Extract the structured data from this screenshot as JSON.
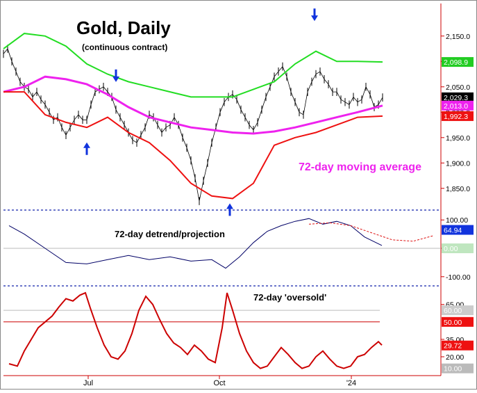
{
  "chart_data": [
    {
      "type": "line",
      "title": "Gold, Daily",
      "subtitle": "(continuous contract)",
      "annotation": "72-day moving average",
      "ylim": [
        1810,
        2210
      ],
      "yticks": [
        2150,
        2100,
        2050,
        2000,
        1950,
        1900,
        1850
      ],
      "ytick_labels": [
        "2,150.0",
        "2,100.0",
        "2,050.0",
        "2,000.0",
        "1,950.0",
        "1,900.0",
        "1,850.0"
      ],
      "price_labels": [
        {
          "value": 2098.9,
          "text": "2,098.9",
          "color": "#22cc22"
        },
        {
          "value": 2029.3,
          "text": "2,029.3",
          "color": "#000000"
        },
        {
          "value": 2013.0,
          "text": "2,013.0",
          "color": "#ee22ee"
        },
        {
          "value": 1992.3,
          "text": "1,992.3",
          "color": "#ee1111"
        }
      ],
      "series": [
        {
          "name": "Price",
          "color": "#000000",
          "x": [
            0,
            6,
            12,
            18,
            24,
            30,
            36,
            42,
            48,
            54,
            60,
            66,
            72,
            78,
            84,
            90,
            96,
            102,
            108,
            114,
            120,
            126,
            132,
            138,
            144,
            150,
            156,
            162,
            168,
            174,
            180,
            186,
            192,
            198,
            204,
            210,
            216,
            222,
            228,
            234,
            240,
            246,
            252,
            258,
            264,
            270,
            276,
            282,
            288,
            294,
            300,
            306,
            312,
            318,
            324,
            330,
            336,
            342,
            348,
            354,
            360,
            366,
            372,
            378,
            384,
            390,
            396,
            402,
            408,
            414,
            420,
            426,
            432,
            438,
            444,
            450,
            456,
            462,
            468,
            474,
            480,
            486,
            492,
            498,
            504,
            510,
            516,
            522,
            528,
            534,
            540,
            546
          ],
          "values": [
            2115,
            2125,
            2100,
            2080,
            2060,
            2050,
            2045,
            2030,
            2040,
            2025,
            2015,
            2000,
            1985,
            1990,
            1970,
            1955,
            1970,
            1985,
            1995,
            1985,
            1985,
            2015,
            2040,
            2045,
            2050,
            2040,
            2030,
            2005,
            1990,
            1975,
            1960,
            1945,
            1940,
            1955,
            1970,
            1995,
            1990,
            1975,
            1960,
            1970,
            1975,
            1990,
            1975,
            1950,
            1930,
            1905,
            1870,
            1825,
            1865,
            1900,
            1940,
            1970,
            2000,
            2020,
            2030,
            2035,
            2025,
            2005,
            1990,
            1975,
            1965,
            1980,
            2005,
            2030,
            2050,
            2070,
            2080,
            2090,
            2070,
            2040,
            2020,
            2000,
            1995,
            2040,
            2060,
            2075,
            2080,
            2065,
            2055,
            2040,
            2040,
            2025,
            2020,
            2015,
            2030,
            2020,
            2025,
            2050,
            2035,
            2010,
            2015,
            2029
          ]
        },
        {
          "name": "upper band",
          "color": "#22dd22",
          "x": [
            0,
            30,
            60,
            90,
            120,
            150,
            180,
            210,
            240,
            270,
            300,
            330,
            360,
            390,
            420,
            450,
            480,
            510,
            546
          ],
          "values": [
            2125,
            2155,
            2150,
            2130,
            2095,
            2075,
            2060,
            2050,
            2040,
            2030,
            2030,
            2030,
            2045,
            2060,
            2095,
            2120,
            2100,
            2100,
            2098.9
          ]
        },
        {
          "name": "72-day moving average",
          "color": "#ee22ee",
          "x": [
            0,
            30,
            60,
            90,
            120,
            150,
            180,
            210,
            240,
            270,
            300,
            330,
            360,
            390,
            420,
            450,
            480,
            510,
            546
          ],
          "values": [
            2040,
            2050,
            2070,
            2065,
            2055,
            2035,
            2010,
            1990,
            1980,
            1970,
            1965,
            1960,
            1958,
            1962,
            1970,
            1980,
            1990,
            2000,
            2013
          ]
        },
        {
          "name": "lower band",
          "color": "#ee1111",
          "x": [
            0,
            30,
            60,
            90,
            120,
            150,
            180,
            210,
            240,
            270,
            300,
            330,
            360,
            390,
            420,
            450,
            480,
            510,
            546
          ],
          "values": [
            2040,
            2040,
            1995,
            1980,
            1970,
            1990,
            1960,
            1940,
            1905,
            1860,
            1835,
            1830,
            1860,
            1935,
            1950,
            1960,
            1975,
            1990,
            1992.3
          ]
        }
      ],
      "arrows": [
        {
          "direction": "down",
          "x": 162,
          "value": 2065
        },
        {
          "direction": "down",
          "x": 448,
          "value": 2185
        },
        {
          "direction": "up",
          "x": 120,
          "value": 1935
        },
        {
          "direction": "up",
          "x": 326,
          "value": 1815
        }
      ]
    },
    {
      "type": "line",
      "title": "72-day detrend/projection",
      "ylim": [
        -125,
        125
      ],
      "yticks": [
        100,
        0,
        -100
      ],
      "ytick_labels": [
        "100.00",
        "0.00",
        "-100.00"
      ],
      "value_label": {
        "value": 64.94,
        "text": "64.94",
        "color": "#1133dd"
      },
      "zero_label": {
        "text": "0.00",
        "color": "#bfe6bf"
      },
      "series": [
        {
          "name": "detrend",
          "color": "#000066",
          "x": [
            8,
            30,
            60,
            90,
            120,
            150,
            180,
            210,
            240,
            270,
            300,
            320,
            340,
            360,
            380,
            400,
            420,
            440,
            460,
            480,
            500,
            520,
            545
          ],
          "values": [
            80,
            50,
            0,
            -50,
            -55,
            -40,
            -25,
            -40,
            -30,
            -45,
            -40,
            -70,
            -30,
            20,
            60,
            80,
            95,
            105,
            85,
            95,
            80,
            40,
            10
          ]
        },
        {
          "name": "projection",
          "color": "#dd1111",
          "x": [
            440,
            470,
            500,
            530,
            560,
            590,
            620
          ],
          "values": [
            85,
            90,
            80,
            55,
            30,
            25,
            45
          ]
        }
      ]
    },
    {
      "type": "line",
      "title": "72-day 'oversold'",
      "ylim": [
        5,
        78
      ],
      "yticks": [
        65,
        35,
        20
      ],
      "ytick_labels": [
        "65.00",
        "35.00",
        "20.00"
      ],
      "level_labels": [
        {
          "value": 60,
          "text": "60.00",
          "color": "#cccccc",
          "line": true
        },
        {
          "value": 50,
          "text": "50.00",
          "color": "#ee1111",
          "line": true
        },
        {
          "value": 29.72,
          "text": "29.72",
          "color": "#ee1111",
          "line": false
        },
        {
          "value": 10,
          "text": "10.00",
          "color": "#bbbbbb",
          "line": false
        }
      ],
      "series": [
        {
          "name": "oversold",
          "color": "#cc0000",
          "x": [
            8,
            20,
            30,
            40,
            50,
            60,
            70,
            80,
            90,
            100,
            110,
            118,
            125,
            135,
            145,
            155,
            165,
            175,
            185,
            195,
            205,
            215,
            225,
            235,
            245,
            255,
            265,
            275,
            285,
            295,
            305,
            315,
            322,
            330,
            340,
            350,
            360,
            370,
            380,
            390,
            400,
            410,
            420,
            430,
            440,
            450,
            460,
            470,
            480,
            490,
            500,
            510,
            520,
            530,
            540,
            545
          ],
          "values": [
            14,
            12,
            25,
            35,
            45,
            50,
            55,
            63,
            70,
            68,
            73,
            75,
            62,
            45,
            30,
            20,
            18,
            25,
            40,
            60,
            72,
            65,
            52,
            40,
            32,
            28,
            22,
            30,
            25,
            18,
            15,
            45,
            75,
            60,
            40,
            25,
            15,
            10,
            12,
            20,
            28,
            22,
            15,
            10,
            12,
            20,
            25,
            18,
            12,
            10,
            12,
            20,
            22,
            28,
            33,
            30
          ]
        }
      ]
    }
  ],
  "x_axis": {
    "tick_labels": [
      "Jul",
      "Oct",
      "'24"
    ]
  }
}
